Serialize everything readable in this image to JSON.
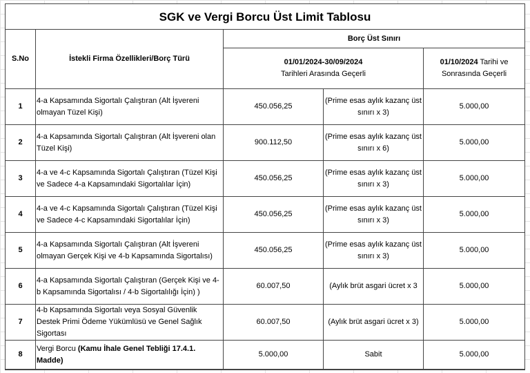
{
  "title": "SGK ve Vergi Borcu Üst Limit Tablosu",
  "headers": {
    "sno": "S.No",
    "type": "İstekli Firma Özellikleri/Borç Türü",
    "limit": "Borç Üst Sınırı",
    "period1_bold": "01/01/2024-30/09/2024",
    "period1_rest": "Tarihleri Arasında Geçerli",
    "period2_bold": "01/10/2024",
    "period2_rest": " Tarihi ve Sonrasında Geçerli"
  },
  "rows": [
    {
      "no": "1",
      "type": "4-a Kapsamında Sigortalı Çalıştıran (Alt İşvereni olmayan Tüzel Kişi)",
      "amount": "450.056,25",
      "basis": "(Prime esas aylık kazanç üst sınırı x 3)",
      "new_amount": "5.000,00"
    },
    {
      "no": "2",
      "type": "4-a Kapsamında Sigortalı Çalıştıran (Alt İşvereni olan Tüzel Kişi)",
      "amount": "900.112,50",
      "basis": "(Prime esas aylık kazanç üst sınırı x 6)",
      "new_amount": "5.000,00"
    },
    {
      "no": "3",
      "type": "4-a ve 4-c Kapsamında Sigortalı Çalıştıran (Tüzel Kişi ve Sadece 4-a Kapsamındaki Sigortalılar İçin)",
      "amount": "450.056,25",
      "basis": "(Prime esas aylık kazanç üst sınırı x 3)",
      "new_amount": "5.000,00"
    },
    {
      "no": "4",
      "type": "4-a ve 4-c Kapsamında Sigortalı Çalıştıran (Tüzel Kişi ve Sadece 4-c Kapsamındaki Sigortalılar İçin)",
      "amount": "450.056,25",
      "basis": "(Prime esas aylık kazanç üst sınırı x 3)",
      "new_amount": "5.000,00"
    },
    {
      "no": "5",
      "type": "4-a Kapsamında Sigortalı Çalıştıran (Alt İşvereni olmayan Gerçek Kişi ve 4-b Kapsamında Sigortalısı)",
      "amount": "450.056,25",
      "basis": "(Prime esas aylık kazanç üst sınırı x 3)",
      "new_amount": "5.000,00"
    },
    {
      "no": "6",
      "type": "4-a Kapsamında Sigortalı Çalıştıran (Gerçek Kişi ve 4-b Kapsamında Sigortalısı / 4-b Sigortalılığı İçin) )",
      "amount": "60.007,50",
      "basis": "(Aylık brüt asgari ücret x 3",
      "new_amount": "5.000,00"
    },
    {
      "no": "7",
      "type": "4-b Kapsamında Sigortalı veya Sosyal Güvenlik Destek Primi Ödeme Yükümlüsü ve Genel Sağlık Sigortası",
      "amount": "60.007,50",
      "basis": "(Aylık brüt asgari ücret x 3)",
      "new_amount": "5.000,00"
    },
    {
      "no": "8",
      "type": "Vergi Borcu ",
      "type_bold": "(Kamu İhale Genel Tebliği 17.4.1. Madde)",
      "amount": "5.000,00",
      "basis": "Sabit",
      "new_amount": "5.000,00"
    }
  ]
}
